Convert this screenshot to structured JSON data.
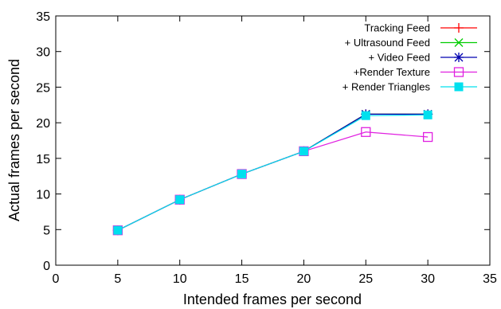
{
  "chart_data": {
    "type": "line",
    "title": "",
    "xlabel": "Intended frames per second",
    "ylabel": "Actual frames per second",
    "xlim": [
      0,
      35
    ],
    "ylim": [
      0,
      35
    ],
    "xticks": [
      0,
      5,
      10,
      15,
      20,
      25,
      30,
      35
    ],
    "yticks": [
      0,
      5,
      10,
      15,
      20,
      25,
      30,
      35
    ],
    "grid": false,
    "legend_position": "top-right",
    "x": [
      5,
      10,
      15,
      20,
      25,
      30
    ],
    "series": [
      {
        "name": "Tracking Feed",
        "color": "#ff0000",
        "marker": "plus",
        "values": [
          4.9,
          9.2,
          12.8,
          16.0,
          21.2,
          21.2
        ]
      },
      {
        "name": "+ Ultrasound Feed",
        "color": "#00cc00",
        "marker": "cross",
        "values": [
          4.9,
          9.2,
          12.8,
          16.0,
          21.2,
          21.2
        ]
      },
      {
        "name": "+ Video Feed",
        "color": "#0000b0",
        "marker": "star",
        "values": [
          4.9,
          9.2,
          12.8,
          16.0,
          21.2,
          21.2
        ]
      },
      {
        "name": "+Render Texture",
        "color": "#e020e0",
        "marker": "open-square",
        "values": [
          4.9,
          9.2,
          12.8,
          16.0,
          18.7,
          18.0
        ]
      },
      {
        "name": "+ Render Triangles",
        "color": "#00e0ee",
        "marker": "filled-square",
        "values": [
          4.9,
          9.2,
          12.8,
          16.0,
          21.0,
          21.1
        ]
      }
    ]
  }
}
